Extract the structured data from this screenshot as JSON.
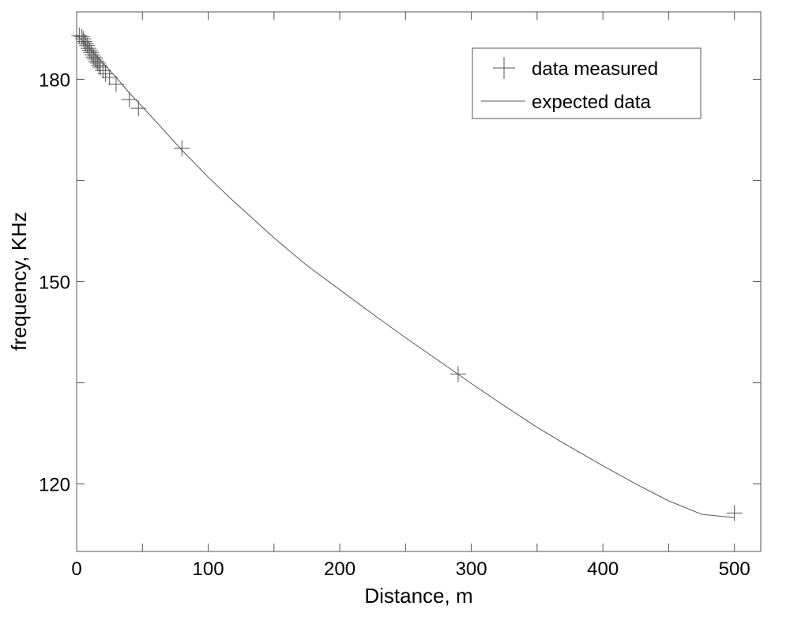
{
  "chart_data": {
    "type": "scatter",
    "title": "",
    "xlabel": "Distance, m",
    "ylabel": "frequency, KHz",
    "xlim": [
      0,
      520
    ],
    "ylim": [
      110,
      190
    ],
    "xticks": [
      0,
      100,
      200,
      300,
      400,
      500
    ],
    "yticks": [
      120,
      150,
      180
    ],
    "x_minor_ticks": [
      50,
      150,
      250,
      350,
      450
    ],
    "y_minor_ticks": [
      135,
      165
    ],
    "grid": false,
    "legend": {
      "position": "top-right"
    },
    "series": [
      {
        "name": "data measured",
        "kind": "scatter",
        "marker": "plus",
        "color": "#555555",
        "x": [
          2,
          4,
          5,
          6,
          7,
          8,
          9,
          10,
          11,
          12,
          13,
          14,
          15,
          16,
          17,
          18,
          20,
          22,
          25,
          30,
          40,
          47,
          80,
          290,
          500
        ],
        "y": [
          186.5,
          186.3,
          186.0,
          185.6,
          185.3,
          185.0,
          184.6,
          184.3,
          184.0,
          183.6,
          183.3,
          183.0,
          182.7,
          182.4,
          182.1,
          181.8,
          181.3,
          180.8,
          180.3,
          179.3,
          177.0,
          175.7,
          169.8,
          136.3,
          115.7
        ]
      },
      {
        "name": "expected data",
        "kind": "line",
        "color": "#555555",
        "x": [
          0,
          10,
          20,
          30,
          40,
          50,
          60,
          80,
          100,
          120,
          150,
          175,
          200,
          225,
          250,
          275,
          300,
          325,
          350,
          375,
          400,
          425,
          450,
          475,
          500
        ],
        "y": [
          186.6,
          184.5,
          182.4,
          180.3,
          178.0,
          175.9,
          173.8,
          169.5,
          165.5,
          161.8,
          156.5,
          152.4,
          148.8,
          145.2,
          141.7,
          138.3,
          134.9,
          131.6,
          128.4,
          125.5,
          122.7,
          120.0,
          117.5,
          115.5,
          115.0
        ]
      }
    ]
  }
}
